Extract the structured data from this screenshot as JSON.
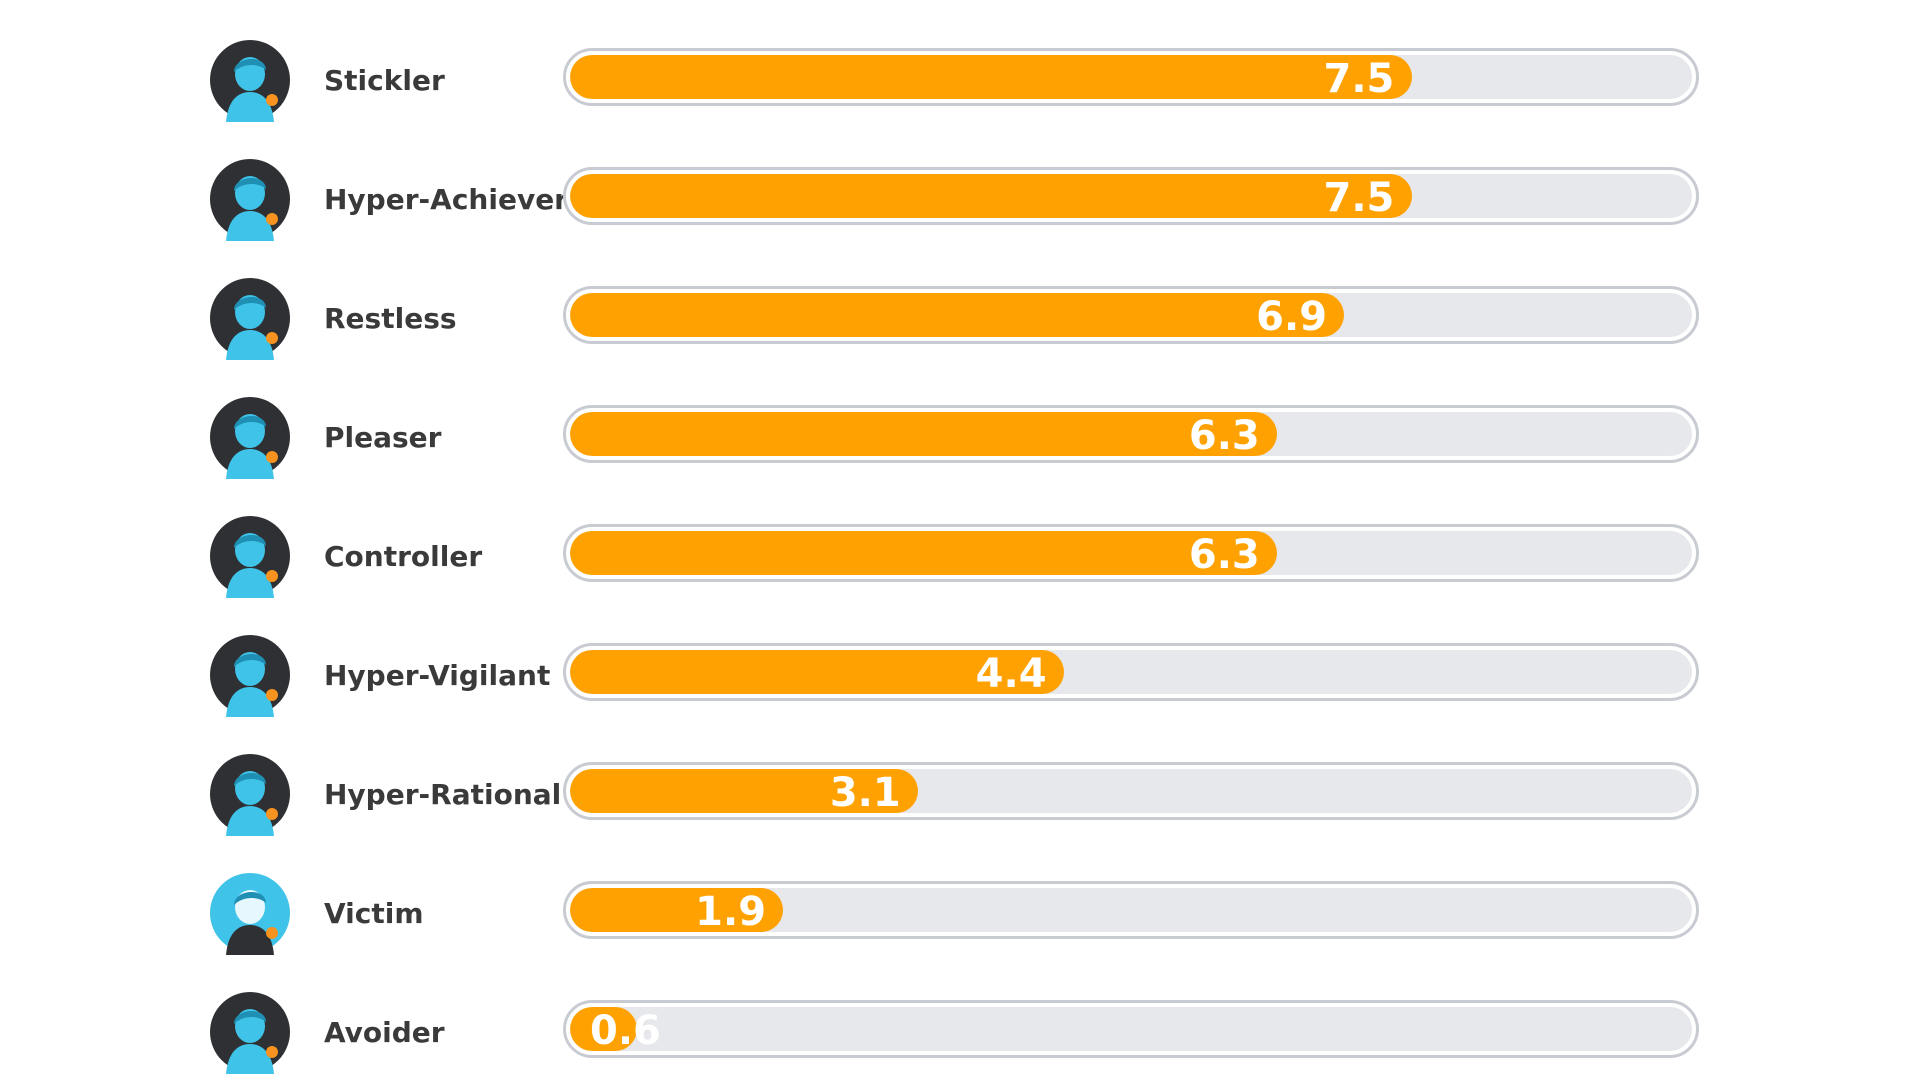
{
  "chart_data": {
    "type": "bar",
    "orientation": "horizontal",
    "categories": [
      "Stickler",
      "Hyper-Achiever",
      "Restless",
      "Pleaser",
      "Controller",
      "Hyper-Vigilant",
      "Hyper-Rational",
      "Victim",
      "Avoider"
    ],
    "values": [
      7.5,
      7.5,
      6.9,
      6.3,
      6.3,
      4.4,
      3.1,
      1.9,
      0.6
    ],
    "value_labels": [
      "7.5",
      "7.5",
      "6.9",
      "6.3",
      "6.3",
      "4.4",
      "3.1",
      "1.9",
      "0.6"
    ],
    "xlim": [
      0,
      10
    ],
    "title": "",
    "xlabel": "",
    "ylabel": "",
    "grid": false,
    "legend": "none",
    "icons": [
      "stickler-avatar-icon",
      "hyper-achiever-avatar-icon",
      "restless-avatar-icon",
      "pleaser-avatar-icon",
      "controller-avatar-icon",
      "hyper-vigilant-avatar-icon",
      "hyper-rational-avatar-icon",
      "victim-avatar-icon",
      "avoider-avatar-icon"
    ]
  },
  "colors": {
    "bar": "#ffa201",
    "track": "#e7e8ec",
    "track_border": "#c9cbd3",
    "label": "#3a3a3a",
    "value_text": "#ffffff",
    "avatar_dark": "#2e3033",
    "avatar_figure": "#3fc3e8",
    "avatar_accent": "#f7931e"
  }
}
